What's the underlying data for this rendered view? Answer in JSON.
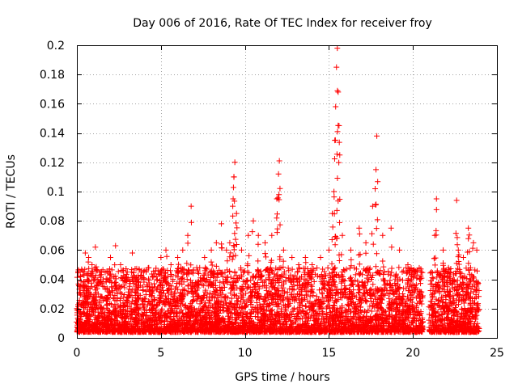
{
  "chart_data": {
    "type": "scatter",
    "title": "Day 006 of 2016, Rate Of TEC Index for receiver froy",
    "xlabel": "GPS time / hours",
    "ylabel": "ROTI / TECUs",
    "xlim": [
      0,
      25
    ],
    "ylim": [
      0,
      0.2
    ],
    "x_ticks": [
      0,
      5,
      10,
      15,
      20,
      25
    ],
    "x_tick_labels": [
      "0",
      "5",
      "10",
      "15",
      "20",
      "25"
    ],
    "y_ticks": [
      0,
      0.02,
      0.04,
      0.06,
      0.08,
      0.1,
      0.12,
      0.14,
      0.16,
      0.18,
      0.2
    ],
    "y_tick_labels": [
      "0",
      "0.02",
      "0.04",
      "0.06",
      "0.08",
      "0.1",
      "0.12",
      "0.14",
      "0.16",
      "0.18",
      "0.2"
    ],
    "grid": true,
    "marker": "+",
    "color": "#ff0000",
    "series": [
      {
        "name": "ROTI",
        "points": [
          [
            0.0,
            0.02
          ],
          [
            0.2,
            0.035
          ],
          [
            0.4,
            0.045
          ],
          [
            0.5,
            0.058
          ],
          [
            0.7,
            0.055
          ],
          [
            0.9,
            0.05
          ],
          [
            1.1,
            0.062
          ],
          [
            1.4,
            0.045
          ],
          [
            1.8,
            0.04
          ],
          [
            2.0,
            0.055
          ],
          [
            2.3,
            0.063
          ],
          [
            2.6,
            0.05
          ],
          [
            3.0,
            0.045
          ],
          [
            3.3,
            0.058
          ],
          [
            3.6,
            0.04
          ],
          [
            4.0,
            0.04
          ],
          [
            4.5,
            0.042
          ],
          [
            5.0,
            0.055
          ],
          [
            5.3,
            0.06
          ],
          [
            5.6,
            0.05
          ],
          [
            6.0,
            0.055
          ],
          [
            6.3,
            0.06
          ],
          [
            6.6,
            0.07
          ],
          [
            6.8,
            0.09
          ],
          [
            7.2,
            0.045
          ],
          [
            7.6,
            0.055
          ],
          [
            8.0,
            0.06
          ],
          [
            8.3,
            0.065
          ],
          [
            8.6,
            0.078
          ],
          [
            8.9,
            0.06
          ],
          [
            9.1,
            0.065
          ],
          [
            9.3,
            0.095
          ],
          [
            9.35,
            0.11
          ],
          [
            9.4,
            0.12
          ],
          [
            9.5,
            0.085
          ],
          [
            9.8,
            0.06
          ],
          [
            10.2,
            0.07
          ],
          [
            10.5,
            0.08
          ],
          [
            10.8,
            0.07
          ],
          [
            11.2,
            0.065
          ],
          [
            11.6,
            0.07
          ],
          [
            11.9,
            0.095
          ],
          [
            12.0,
            0.112
          ],
          [
            12.05,
            0.121
          ],
          [
            12.3,
            0.06
          ],
          [
            12.8,
            0.055
          ],
          [
            13.2,
            0.05
          ],
          [
            13.6,
            0.055
          ],
          [
            14.0,
            0.05
          ],
          [
            14.5,
            0.055
          ],
          [
            15.0,
            0.06
          ],
          [
            15.2,
            0.085
          ],
          [
            15.3,
            0.1
          ],
          [
            15.35,
            0.135
          ],
          [
            15.4,
            0.158
          ],
          [
            15.45,
            0.185
          ],
          [
            15.5,
            0.198
          ],
          [
            15.55,
            0.168
          ],
          [
            15.6,
            0.145
          ],
          [
            15.8,
            0.07
          ],
          [
            16.3,
            0.06
          ],
          [
            16.8,
            0.075
          ],
          [
            17.2,
            0.065
          ],
          [
            17.6,
            0.09
          ],
          [
            17.8,
            0.115
          ],
          [
            17.85,
            0.138
          ],
          [
            18.2,
            0.07
          ],
          [
            18.7,
            0.075
          ],
          [
            19.2,
            0.06
          ],
          [
            19.7,
            0.05
          ],
          [
            20.1,
            0.045
          ],
          [
            20.4,
            0.04
          ],
          [
            21.1,
            0.045
          ],
          [
            21.3,
            0.07
          ],
          [
            21.4,
            0.095
          ],
          [
            21.8,
            0.06
          ],
          [
            22.2,
            0.045
          ],
          [
            22.6,
            0.094
          ],
          [
            22.7,
            0.06
          ],
          [
            23.0,
            0.055
          ],
          [
            23.3,
            0.075
          ],
          [
            23.6,
            0.065
          ],
          [
            23.8,
            0.06
          ]
        ]
      }
    ]
  }
}
